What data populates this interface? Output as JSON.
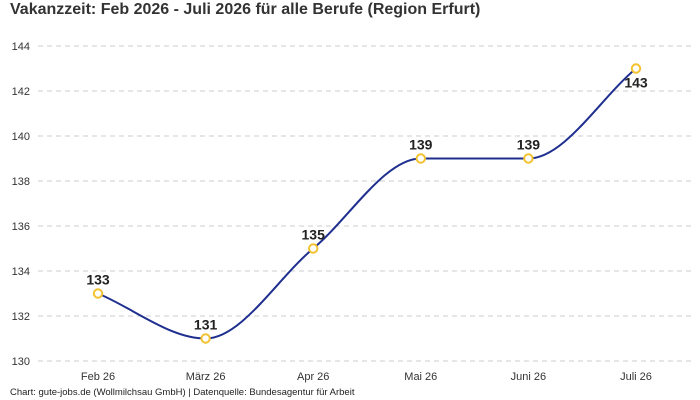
{
  "title": "Vakanzzeit: Feb 2026 - Juli 2026 für alle Berufe (Region Erfurt)",
  "footer": "Chart: gute-jobs.de (Wollmilchsau GmbH) | Datenquelle: Bundesagentur für Arbeit",
  "colors": {
    "line": "#1f2f8f",
    "marker_stroke": "#f2c230",
    "marker_fill": "#ffffff",
    "grid": "#cccccc"
  },
  "chart_data": {
    "type": "line",
    "categories": [
      "Feb 26",
      "März 26",
      "Apr 26",
      "Mai 26",
      "Juni 26",
      "Juli 26"
    ],
    "series": [
      {
        "values": [
          133,
          131,
          135,
          139,
          139,
          143
        ],
        "data_labels": [
          "133",
          "131",
          "135",
          "139",
          "139",
          "143"
        ]
      }
    ],
    "ylim": [
      130,
      144
    ],
    "yticks": [
      "130",
      "132",
      "134",
      "136",
      "138",
      "140",
      "142",
      "144"
    ],
    "grid": true,
    "grid_style": "dashed",
    "legend": "none",
    "smooth": true,
    "xlabel": "",
    "ylabel": ""
  }
}
